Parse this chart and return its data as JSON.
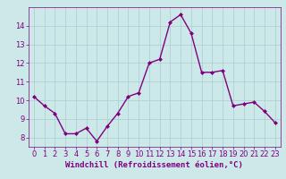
{
  "x": [
    0,
    1,
    2,
    3,
    4,
    5,
    6,
    7,
    8,
    9,
    10,
    11,
    12,
    13,
    14,
    15,
    16,
    17,
    18,
    19,
    20,
    21,
    22,
    23
  ],
  "y": [
    10.2,
    9.7,
    9.3,
    8.2,
    8.2,
    8.5,
    7.8,
    8.6,
    9.3,
    10.2,
    10.4,
    12.0,
    12.2,
    14.2,
    14.6,
    13.6,
    11.5,
    11.5,
    11.6,
    9.7,
    9.8,
    9.9,
    9.4,
    8.8
  ],
  "xlim": [
    -0.5,
    23.5
  ],
  "ylim": [
    7.5,
    15.0
  ],
  "yticks": [
    8,
    9,
    10,
    11,
    12,
    13,
    14
  ],
  "xticks": [
    0,
    1,
    2,
    3,
    4,
    5,
    6,
    7,
    8,
    9,
    10,
    11,
    12,
    13,
    14,
    15,
    16,
    17,
    18,
    19,
    20,
    21,
    22,
    23
  ],
  "xlabel": "Windchill (Refroidissement éolien,°C)",
  "line_color": "#800080",
  "marker": "D",
  "marker_size": 2.0,
  "bg_color": "#cce8e8",
  "grid_color": "#aacece",
  "tick_color": "#800080",
  "label_color": "#800080",
  "linewidth": 1.0,
  "tick_labelsize": 6.0,
  "xlabel_fontsize": 6.5
}
